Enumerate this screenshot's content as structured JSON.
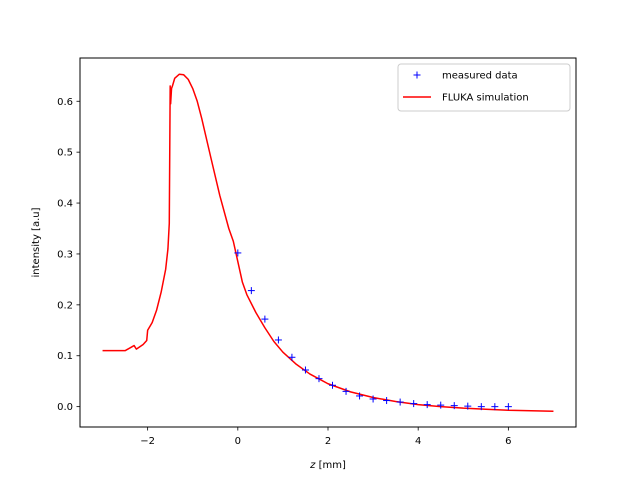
{
  "chart_data": {
    "type": "scatter",
    "title": "",
    "xlabel_var": "z",
    "xlabel_unit": " [mm]",
    "ylabel": "intensity [a.u]",
    "xlim": [
      -3.5,
      7.5
    ],
    "ylim": [
      -0.04,
      0.685
    ],
    "xticks": [
      -2,
      0,
      2,
      4,
      6
    ],
    "xtick_labels": [
      "−2",
      "0",
      "2",
      "4",
      "6"
    ],
    "yticks": [
      0.0,
      0.1,
      0.2,
      0.3,
      0.4,
      0.5,
      0.6
    ],
    "ytick_labels": [
      "0.0",
      "0.1",
      "0.2",
      "0.3",
      "0.4",
      "0.5",
      "0.6"
    ],
    "grid": false,
    "legend_position": "upper-right",
    "series": [
      {
        "name": "measured data",
        "type": "scatter",
        "marker": "+",
        "color": "#0000ff",
        "x": [
          0.0,
          0.3,
          0.6,
          0.9,
          1.2,
          1.5,
          1.8,
          2.1,
          2.4,
          2.7,
          3.0,
          3.3,
          3.6,
          3.9,
          4.2,
          4.5,
          4.8,
          5.1,
          5.4,
          5.7,
          6.0
        ],
        "y": [
          0.302,
          0.228,
          0.172,
          0.131,
          0.097,
          0.072,
          0.055,
          0.042,
          0.03,
          0.021,
          0.015,
          0.012,
          0.009,
          0.006,
          0.004,
          0.003,
          0.002,
          0.001,
          0.0,
          0.0,
          0.0
        ]
      },
      {
        "name": "FLUKA simulation",
        "type": "line",
        "color": "#ff0000",
        "x": [
          -3.0,
          -2.5,
          -2.3,
          -2.25,
          -2.1,
          -2.02,
          -2.0,
          -1.9,
          -1.8,
          -1.7,
          -1.6,
          -1.55,
          -1.52,
          -1.5,
          -1.49,
          -1.48,
          -1.47,
          -1.45,
          -1.4,
          -1.3,
          -1.2,
          -1.1,
          -1.0,
          -0.9,
          -0.8,
          -0.6,
          -0.4,
          -0.2,
          -0.1,
          0.0,
          0.1,
          0.2,
          0.4,
          0.6,
          0.8,
          1.0,
          1.3,
          1.6,
          2.0,
          2.5,
          3.0,
          3.5,
          4.0,
          4.5,
          5.0,
          5.5,
          6.0,
          6.5,
          7.0
        ],
        "y": [
          0.11,
          0.11,
          0.12,
          0.113,
          0.122,
          0.13,
          0.15,
          0.165,
          0.19,
          0.225,
          0.27,
          0.31,
          0.36,
          0.63,
          0.595,
          0.61,
          0.625,
          0.63,
          0.645,
          0.653,
          0.652,
          0.643,
          0.625,
          0.6,
          0.566,
          0.49,
          0.415,
          0.35,
          0.325,
          0.285,
          0.245,
          0.22,
          0.185,
          0.155,
          0.128,
          0.107,
          0.083,
          0.064,
          0.045,
          0.029,
          0.018,
          0.01,
          0.004,
          0.0,
          -0.003,
          -0.005,
          -0.007,
          -0.008,
          -0.009
        ]
      }
    ]
  }
}
